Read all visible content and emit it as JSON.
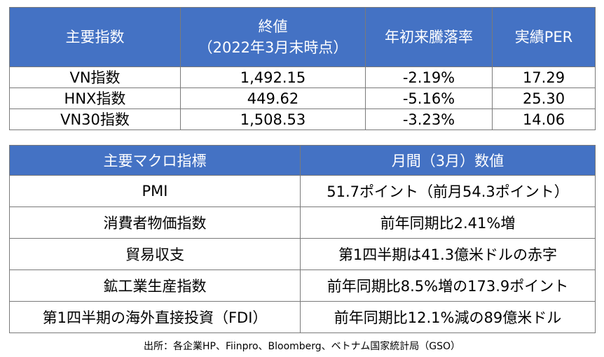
{
  "index_table": {
    "headers": {
      "name": "主要指数",
      "close_line1": "終値",
      "close_line2": "（2022年3月末時点）",
      "ytd": "年初来騰落率",
      "per": "実績PER"
    },
    "rows": [
      {
        "name": "VN指数",
        "close": "1,492.15",
        "ytd": "-2.19%",
        "per": "17.29"
      },
      {
        "name": "HNX指数",
        "close": "449.62",
        "ytd": "-5.16%",
        "per": "25.30"
      },
      {
        "name": "VN30指数",
        "close": "1,508.53",
        "ytd": "-3.23%",
        "per": "14.06"
      }
    ]
  },
  "macro_table": {
    "headers": {
      "indicator": "主要マクロ指標",
      "value": "月間（3月）数値"
    },
    "rows": [
      {
        "indicator": "PMI",
        "value": "51.7ポイント（前月54.3ポイント）"
      },
      {
        "indicator": "消費者物価指数",
        "value": "前年同期比2.41%増"
      },
      {
        "indicator": "貿易収支",
        "value": "第1四半期は41.3億米ドルの赤字"
      },
      {
        "indicator": "鉱工業生産指数",
        "value": "前年同期比8.5%増の173.9ポイント"
      },
      {
        "indicator": "第1四半期の海外直接投資（FDI）",
        "value": "前年同期比12.1%減の89億米ドル"
      }
    ]
  },
  "source": "出所：各企業HP、Fiinpro、Bloomberg、ベトナム国家統計局（GSO）",
  "colors": {
    "header_bg": "#4472c4",
    "header_text": "#ffffff",
    "border": "#7a7a7a"
  }
}
